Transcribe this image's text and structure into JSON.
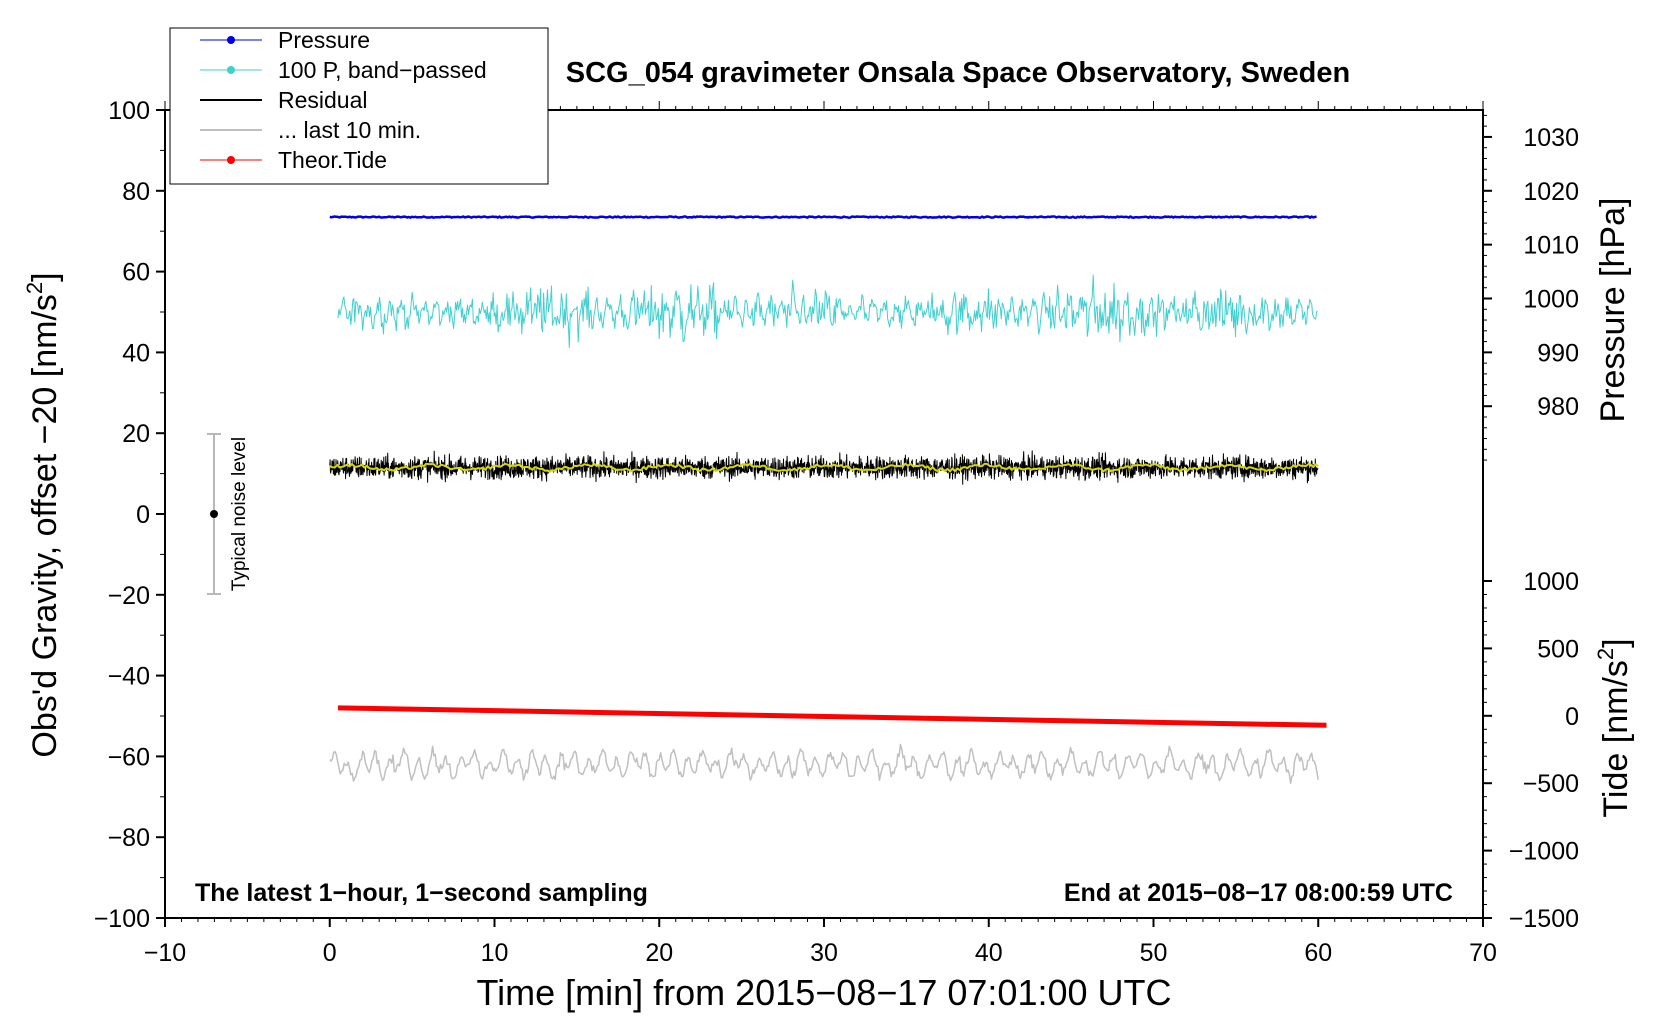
{
  "chart_data": {
    "type": "line",
    "title": "SCG_054 gravimeter Onsala Space Observatory, Sweden",
    "xlabel": "Time [min] from 2015−08−17 07:01:00 UTC",
    "ylabel_base": "Obs'd Gravity, offset −20 [nm/s",
    "ylabel_sup": "2",
    "ylabel_end": "]",
    "xlim": [
      -10,
      70
    ],
    "ylim": [
      -100,
      100
    ],
    "x_ticks": [
      -10,
      0,
      10,
      20,
      30,
      40,
      50,
      60,
      70
    ],
    "x_tick_labels": [
      "−10",
      "0",
      "10",
      "20",
      "30",
      "40",
      "50",
      "60",
      "70"
    ],
    "y_ticks": [
      100,
      80,
      60,
      40,
      20,
      0,
      -20,
      -40,
      -60,
      -80,
      -100
    ],
    "y_tick_labels": [
      "100",
      "80",
      "60",
      "40",
      "20",
      "0",
      "−20",
      "−40",
      "−60",
      "−80",
      "−100"
    ],
    "right_axes": [
      {
        "label": "Pressure [hPa]",
        "ticks": [
          1030,
          1020,
          1010,
          1000,
          990,
          980
        ],
        "tick_labels": [
          "1030",
          "1020",
          "1010",
          "1000",
          "990",
          "980"
        ],
        "ylim": [
          965,
          1035
        ]
      },
      {
        "label_base": "Tide [nm/s",
        "label_sup": "2",
        "label_end": "]",
        "ticks": [
          1000,
          500,
          0,
          -500,
          -1000,
          -1500
        ],
        "tick_labels": [
          "1000",
          "500",
          "0",
          "−500",
          "−1000",
          "−1500"
        ],
        "ylim": [
          -1500,
          1000
        ]
      }
    ],
    "legend_position": "top-left",
    "legend": [
      {
        "name": "Pressure",
        "color": "#0000e0",
        "marker": true
      },
      {
        "name": "100 P, band−passed",
        "color": "#40d0d0",
        "marker": true
      },
      {
        "name": "Residual",
        "color": "#000000",
        "marker": false
      },
      {
        "name": "... last 10 min.",
        "color": "#c0c0c0",
        "marker": false
      },
      {
        "name": "Theor.Tide",
        "color": "#ff0000",
        "marker": true
      }
    ],
    "series": [
      {
        "name": "Pressure",
        "color": "#0000e0",
        "x_range": [
          0,
          60
        ],
        "level": 73.5,
        "amplitude": 0.3
      },
      {
        "name": "100 P, band−passed",
        "color": "#40d0d0",
        "x_range": [
          0.5,
          60
        ],
        "level": 50,
        "amplitude": 22
      },
      {
        "name": "Residual",
        "color": "#000000",
        "x_range": [
          0,
          60
        ],
        "level": 11.5,
        "amplitude": 6
      },
      {
        "name": "Residual smoothed",
        "color": "#d8d800",
        "x_range": [
          0,
          60
        ],
        "level": 11.5,
        "amplitude": 1
      },
      {
        "name": "... last 10 min.",
        "color": "#c0c0c0",
        "x_range": [
          0,
          60
        ],
        "level": -62,
        "amplitude": 6
      },
      {
        "name": "Theor.Tide",
        "color": "#ff0000",
        "x_range": [
          0.5,
          60.5
        ],
        "y_start": -48,
        "y_end": -52.3
      }
    ],
    "noise_bar": {
      "label": "Typical noise level",
      "x": -7,
      "center": 0,
      "low": -20,
      "high": 20
    },
    "annotations": {
      "left": "The latest 1−hour, 1−second sampling",
      "right": "End at 2015−08−17 08:00:59 UTC"
    }
  }
}
